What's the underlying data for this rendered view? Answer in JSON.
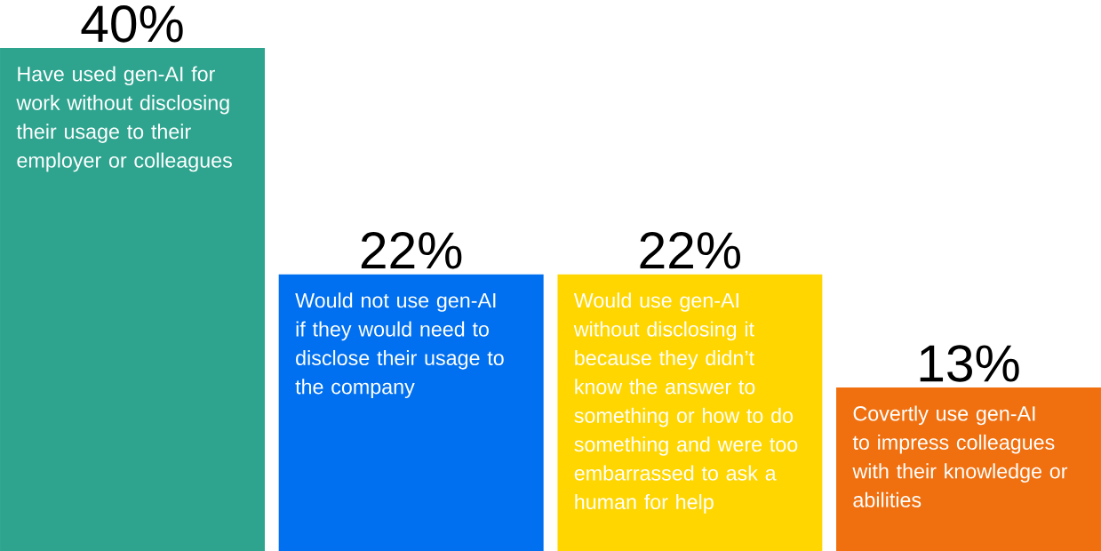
{
  "chart_data": {
    "type": "bar",
    "categories": [
      "Have used gen-AI for work without disclosing their usage to their employer or colleagues",
      "Would not use gen-AI if they would need to disclose their usage to the company",
      "Would use gen-AI without disclosing it because they didn’t know the answer to something or how to do something and were too embarrassed to ask a human for help",
      "Covertly use gen-AI to impress colleagues with their knowledge or abilities"
    ],
    "values": [
      40,
      22,
      22,
      13
    ],
    "value_labels": [
      "40%",
      "22%",
      "22%",
      "13%"
    ],
    "colors": [
      "#2ea48f",
      "#0070f0",
      "#ffd600",
      "#f07010"
    ]
  }
}
